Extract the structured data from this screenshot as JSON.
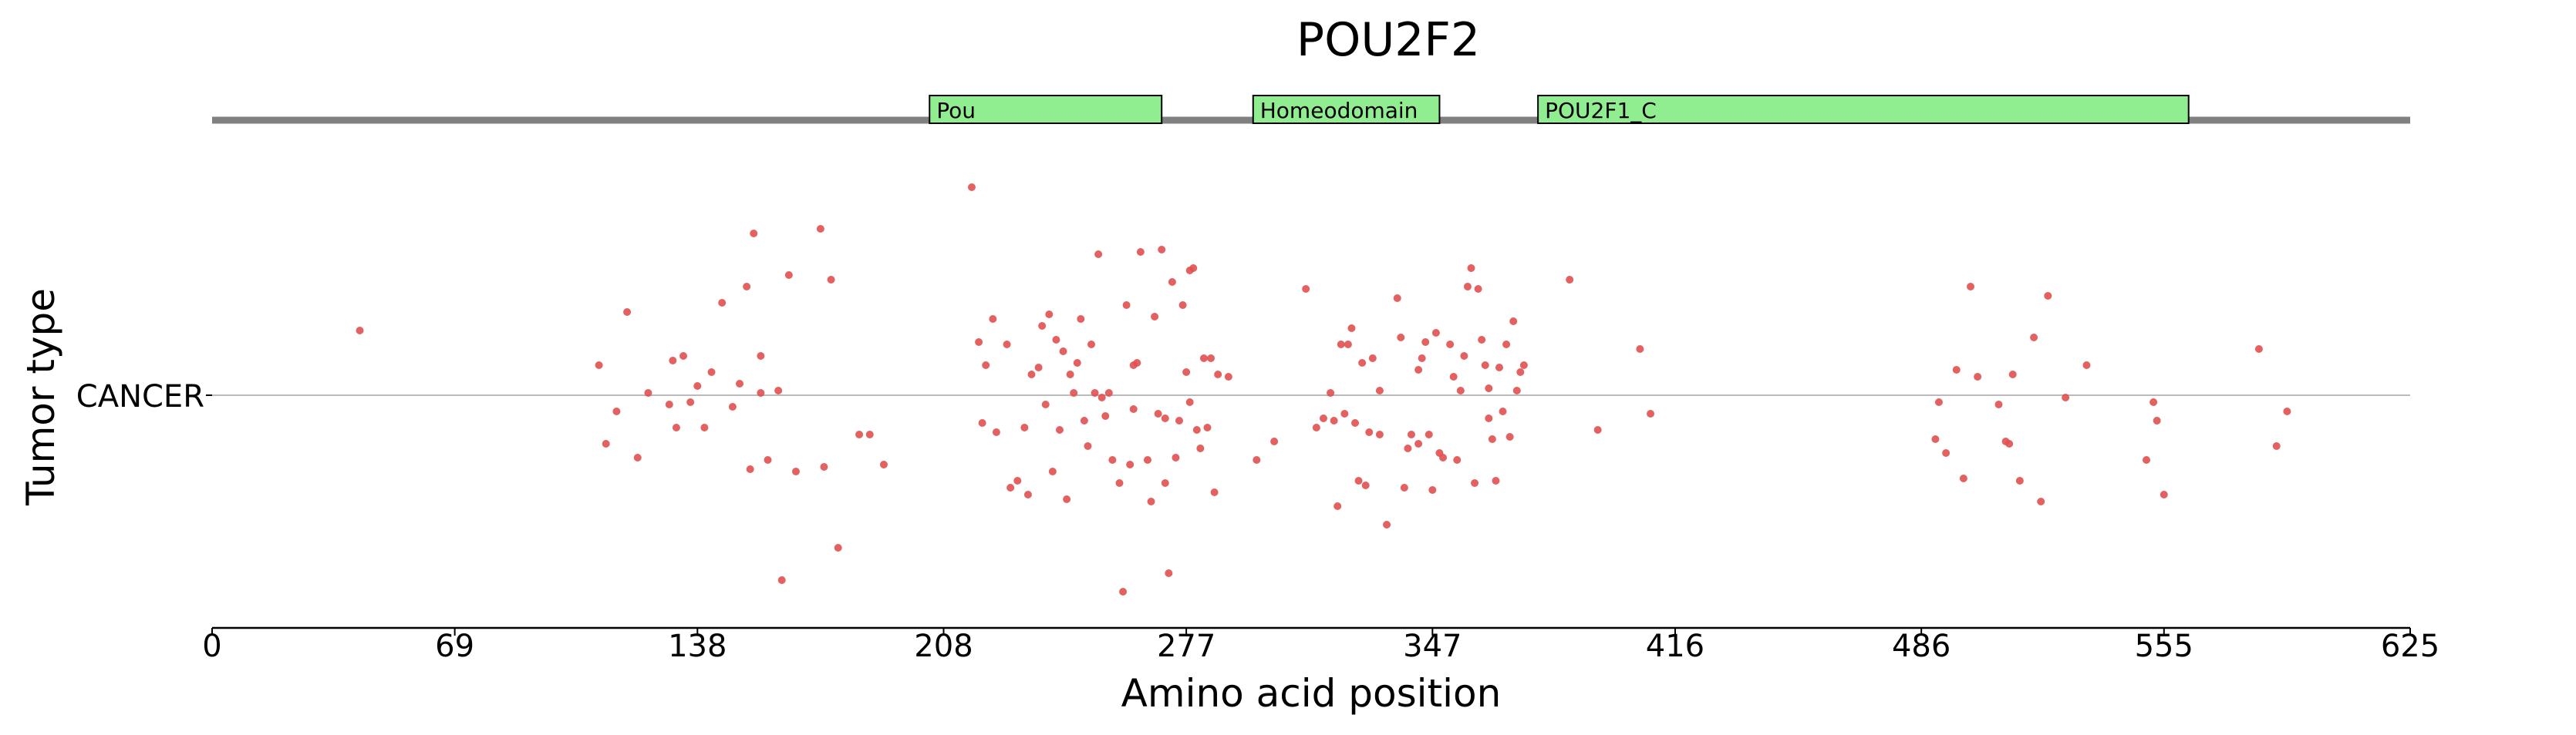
{
  "chart_data": {
    "type": "scatter",
    "title": "POU2F2",
    "xlabel": "Amino acid position",
    "ylabel": "Tumor type",
    "xlim": [
      0,
      625
    ],
    "xticks": [
      0,
      69,
      138,
      208,
      277,
      347,
      416,
      486,
      555,
      625
    ],
    "categories": [
      "CANCER"
    ],
    "domains": [
      {
        "name": "Pou",
        "start": 204,
        "end": 270
      },
      {
        "name": "Homeodomain",
        "start": 296,
        "end": 349
      },
      {
        "name": "POU2F1_C",
        "start": 377,
        "end": 562
      }
    ],
    "colors": {
      "point": "#e05050",
      "domain_fill": "#90ee90",
      "backbone": "#808080",
      "reference": "#bbbbbb"
    },
    "series": [
      {
        "category": "CANCER",
        "points": [
          [
            42,
            0.28
          ],
          [
            110,
            0.13
          ],
          [
            112,
            -0.21
          ],
          [
            115,
            -0.07
          ],
          [
            118,
            0.36
          ],
          [
            121,
            -0.27
          ],
          [
            124,
            0.01
          ],
          [
            130,
            -0.04
          ],
          [
            131,
            0.15
          ],
          [
            132,
            -0.14
          ],
          [
            134,
            0.17
          ],
          [
            136,
            -0.03
          ],
          [
            138,
            0.04
          ],
          [
            140,
            -0.14
          ],
          [
            142,
            0.1
          ],
          [
            145,
            0.4
          ],
          [
            148,
            -0.05
          ],
          [
            150,
            0.05
          ],
          [
            152,
            0.47
          ],
          [
            153,
            -0.32
          ],
          [
            154,
            0.7
          ],
          [
            156,
            0.01
          ],
          [
            156,
            0.17
          ],
          [
            158,
            -0.28
          ],
          [
            161,
            0.02
          ],
          [
            162,
            -0.8
          ],
          [
            164,
            0.52
          ],
          [
            166,
            -0.33
          ],
          [
            173,
            0.72
          ],
          [
            174,
            -0.31
          ],
          [
            176,
            0.5
          ],
          [
            178,
            -0.66
          ],
          [
            187,
            -0.17
          ],
          [
            184,
            -0.17
          ],
          [
            191,
            -0.3
          ],
          [
            216,
            0.9
          ],
          [
            218,
            0.23
          ],
          [
            219,
            -0.12
          ],
          [
            220,
            0.13
          ],
          [
            222,
            0.33
          ],
          [
            223,
            -0.16
          ],
          [
            226,
            0.22
          ],
          [
            227,
            -0.4
          ],
          [
            229,
            -0.37
          ],
          [
            231,
            -0.14
          ],
          [
            232,
            -0.43
          ],
          [
            233,
            0.09
          ],
          [
            235,
            0.12
          ],
          [
            236,
            0.3
          ],
          [
            237,
            -0.04
          ],
          [
            238,
            0.35
          ],
          [
            239,
            -0.33
          ],
          [
            240,
            0.24
          ],
          [
            241,
            -0.15
          ],
          [
            242,
            0.19
          ],
          [
            243,
            -0.45
          ],
          [
            244,
            0.09
          ],
          [
            245,
            0.01
          ],
          [
            246,
            0.14
          ],
          [
            247,
            0.33
          ],
          [
            248,
            -0.11
          ],
          [
            249,
            -0.22
          ],
          [
            250,
            0.22
          ],
          [
            251,
            0.01
          ],
          [
            252,
            0.61
          ],
          [
            253,
            -0.01
          ],
          [
            254,
            -0.09
          ],
          [
            255,
            0.01
          ],
          [
            256,
            -0.28
          ],
          [
            258,
            -0.38
          ],
          [
            259,
            -0.85
          ],
          [
            260,
            0.39
          ],
          [
            261,
            -0.3
          ],
          [
            262,
            -0.06
          ],
          [
            262,
            0.13
          ],
          [
            263,
            0.14
          ],
          [
            264,
            0.62
          ],
          [
            266,
            -0.28
          ],
          [
            267,
            -0.46
          ],
          [
            268,
            0.34
          ],
          [
            269,
            -0.08
          ],
          [
            270,
            0.63
          ],
          [
            271,
            -0.38
          ],
          [
            271,
            -0.1
          ],
          [
            272,
            -0.77
          ],
          [
            273,
            0.49
          ],
          [
            274,
            -0.27
          ],
          [
            275,
            -0.11
          ],
          [
            276,
            0.39
          ],
          [
            277,
            0.1
          ],
          [
            278,
            0.54
          ],
          [
            278,
            -0.03
          ],
          [
            279,
            0.55
          ],
          [
            280,
            -0.15
          ],
          [
            281,
            -0.23
          ],
          [
            282,
            0.16
          ],
          [
            283,
            -0.14
          ],
          [
            284,
            0.16
          ],
          [
            285,
            -0.42
          ],
          [
            286,
            0.09
          ],
          [
            289,
            0.08
          ],
          [
            297,
            -0.28
          ],
          [
            302,
            -0.2
          ],
          [
            311,
            0.46
          ],
          [
            314,
            -0.14
          ],
          [
            316,
            -0.1
          ],
          [
            318,
            0.01
          ],
          [
            319,
            -0.11
          ],
          [
            320,
            -0.48
          ],
          [
            321,
            0.22
          ],
          [
            322,
            -0.08
          ],
          [
            323,
            0.22
          ],
          [
            324,
            0.29
          ],
          [
            325,
            -0.12
          ],
          [
            326,
            -0.37
          ],
          [
            327,
            0.14
          ],
          [
            328,
            -0.39
          ],
          [
            329,
            -0.16
          ],
          [
            330,
            0.16
          ],
          [
            332,
            0.02
          ],
          [
            332,
            -0.17
          ],
          [
            334,
            -0.56
          ],
          [
            337,
            0.42
          ],
          [
            338,
            0.25
          ],
          [
            339,
            -0.4
          ],
          [
            340,
            -0.23
          ],
          [
            341,
            -0.17
          ],
          [
            343,
            0.11
          ],
          [
            343,
            -0.21
          ],
          [
            344,
            0.16
          ],
          [
            345,
            0.23
          ],
          [
            346,
            -0.17
          ],
          [
            347,
            -0.41
          ],
          [
            348,
            0.27
          ],
          [
            349,
            -0.25
          ],
          [
            350,
            -0.27
          ],
          [
            352,
            0.22
          ],
          [
            353,
            0.08
          ],
          [
            354,
            -0.28
          ],
          [
            355,
            0.02
          ],
          [
            356,
            0.17
          ],
          [
            357,
            0.47
          ],
          [
            358,
            0.55
          ],
          [
            359,
            -0.38
          ],
          [
            360,
            0.46
          ],
          [
            361,
            0.24
          ],
          [
            362,
            0.13
          ],
          [
            363,
            -0.1
          ],
          [
            363,
            0.03
          ],
          [
            364,
            -0.19
          ],
          [
            365,
            -0.37
          ],
          [
            366,
            0.12
          ],
          [
            367,
            -0.07
          ],
          [
            368,
            0.22
          ],
          [
            369,
            -0.18
          ],
          [
            370,
            0.32
          ],
          [
            371,
            0.02
          ],
          [
            372,
            0.1
          ],
          [
            373,
            0.13
          ],
          [
            386,
            0.5
          ],
          [
            394,
            -0.15
          ],
          [
            406,
            0.2
          ],
          [
            409,
            -0.08
          ],
          [
            490,
            -0.19
          ],
          [
            491,
            -0.03
          ],
          [
            493,
            -0.25
          ],
          [
            496,
            0.11
          ],
          [
            498,
            -0.36
          ],
          [
            500,
            0.47
          ],
          [
            502,
            0.08
          ],
          [
            508,
            -0.04
          ],
          [
            510,
            -0.2
          ],
          [
            511,
            -0.21
          ],
          [
            512,
            0.09
          ],
          [
            514,
            -0.37
          ],
          [
            518,
            0.25
          ],
          [
            520,
            -0.46
          ],
          [
            522,
            0.43
          ],
          [
            527,
            -0.01
          ],
          [
            533,
            0.13
          ],
          [
            550,
            -0.28
          ],
          [
            552,
            -0.03
          ],
          [
            553,
            -0.11
          ],
          [
            555,
            -0.43
          ],
          [
            582,
            0.2
          ],
          [
            587,
            -0.22
          ],
          [
            590,
            -0.07
          ]
        ]
      }
    ]
  }
}
